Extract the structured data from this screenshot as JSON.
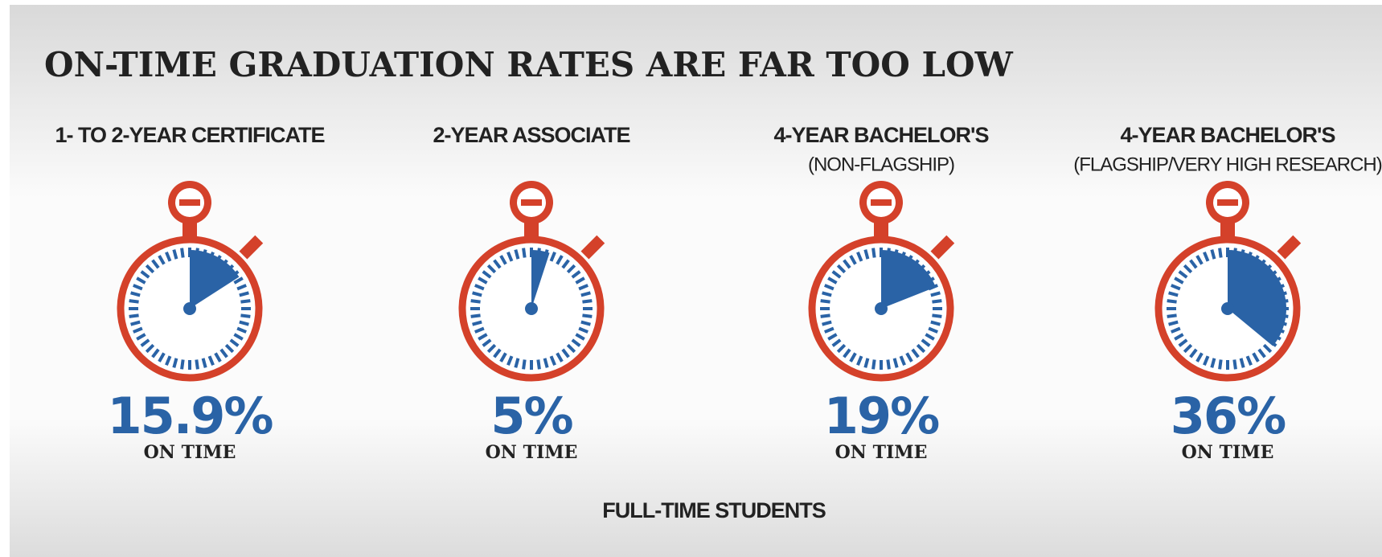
{
  "chart_data": {
    "type": "stopwatch",
    "title": "ON-TIME GRADUATION RATES ARE FAR TOO LOW",
    "categories": [
      "1- TO 2-YEAR CERTIFICATE",
      "2-YEAR ASSOCIATE",
      "4-YEAR BACHELOR'S",
      "4-YEAR BACHELOR'S"
    ],
    "subcategories": [
      null,
      null,
      "(NON-FLAGSHIP)",
      "(FLAGSHIP/VERY HIGH RESEARCH)"
    ],
    "values": [
      15.9,
      5,
      19,
      36
    ],
    "value_labels": [
      "15.9%",
      "5%",
      "19%",
      "36%"
    ],
    "value_caption": "ON TIME",
    "xlabel": "FULL-TIME STUDENTS",
    "ylim": [
      0,
      100
    ],
    "color": "#2a63a6",
    "frame_color": "#d4412a"
  }
}
